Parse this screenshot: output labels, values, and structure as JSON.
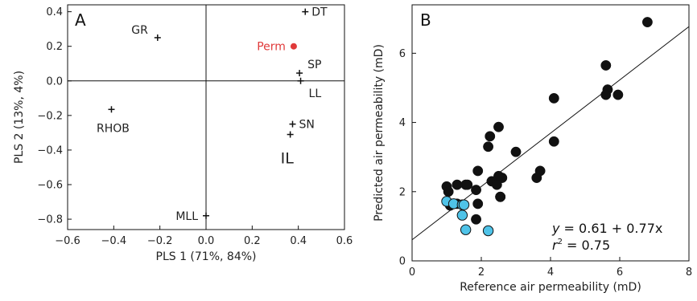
{
  "chart_data": [
    {
      "type": "scatter",
      "panel_label": "A",
      "xlabel": "PLS 1 (71%, 84%)",
      "ylabel": "PLS 2 (13%, 4%)",
      "xlim": [
        -0.6,
        0.6
      ],
      "ylim": [
        -0.86,
        0.44
      ],
      "xticks": [
        -0.6,
        -0.4,
        -0.2,
        0,
        0.2,
        0.4,
        0.6
      ],
      "xtick_labels": [
        "−0.6",
        "−0.4",
        "−0.2",
        "0.0",
        "0.2",
        "0.4",
        "0.6"
      ],
      "yticks": [
        0.4,
        0.2,
        0.0,
        -0.2,
        -0.4,
        -0.6,
        -0.8
      ],
      "ytick_labels": [
        "0.4",
        "0.2",
        "0.0",
        "−0.2",
        "−0.4",
        "−0.6",
        "−0.8"
      ],
      "zero_lines": true,
      "points": [
        {
          "label": "DT",
          "x": 0.43,
          "y": 0.4,
          "marker": "plus",
          "color": "#111111",
          "label_pos": "right"
        },
        {
          "label": "GR",
          "x": -0.21,
          "y": 0.25,
          "marker": "plus",
          "color": "#111111",
          "label_pos": "upper-left"
        },
        {
          "label": "Perm",
          "x": 0.38,
          "y": 0.2,
          "marker": "dot",
          "color": "#e03a3a",
          "label_pos": "left"
        },
        {
          "label": "SP",
          "x": 0.405,
          "y": 0.045,
          "marker": "plus",
          "color": "#111111",
          "label_pos": "upper-right"
        },
        {
          "label": "LL",
          "x": 0.41,
          "y": 0.0,
          "marker": "plus",
          "color": "#111111",
          "label_pos": "lower-right"
        },
        {
          "label": "RHOB",
          "x": -0.41,
          "y": -0.165,
          "marker": "plus",
          "color": "#111111",
          "label_pos": "below"
        },
        {
          "label": "SN",
          "x": 0.375,
          "y": -0.25,
          "marker": "plus",
          "color": "#111111",
          "label_pos": "right"
        },
        {
          "label": "IL",
          "x": 0.365,
          "y": -0.31,
          "marker": "plus",
          "color": "#111111",
          "label_pos": "below-large"
        },
        {
          "label": "MLL",
          "x": 0.0,
          "y": -0.78,
          "marker": "plus",
          "color": "#111111",
          "label_pos": "left"
        }
      ]
    },
    {
      "type": "scatter",
      "panel_label": "B",
      "xlabel": "Reference air permeability (mD)",
      "ylabel": "Predicted air permeability (mD)",
      "xlim": [
        0,
        8
      ],
      "ylim": [
        0,
        7.4
      ],
      "xticks": [
        0,
        2,
        4,
        6,
        8
      ],
      "yticks": [
        0,
        2,
        4,
        6
      ],
      "fit_line": {
        "intercept": 0.61,
        "slope": 0.77
      },
      "annotation": {
        "eq_italic": "y",
        "eq_rest": " = 0.61 + 0.77x",
        "r2_italic": "r",
        "r2_sup": "2",
        "r2_rest": " = 0.75"
      },
      "series": [
        {
          "marker_color": "#111111",
          "x": [
            6.8,
            5.6,
            5.65,
            5.6,
            5.95,
            4.1,
            4.1,
            2.5,
            2.25,
            2.2,
            3.0,
            2.6,
            2.5,
            2.3,
            2.45,
            2.55,
            3.7,
            3.6,
            1.9,
            1.85,
            1.0,
            1.05,
            1.3,
            1.55,
            1.6,
            1.9,
            2.55,
            1.3,
            1.1,
            1.85
          ],
          "y": [
            6.9,
            5.65,
            4.95,
            4.8,
            4.8,
            4.7,
            3.45,
            3.87,
            3.6,
            3.3,
            3.15,
            2.4,
            2.45,
            2.3,
            2.2,
            1.85,
            2.6,
            2.4,
            2.6,
            2.05,
            2.15,
            2.0,
            2.2,
            2.2,
            2.2,
            1.65,
            1.85,
            1.65,
            1.6,
            1.2
          ]
        },
        {
          "marker_color": "#4fc3e8",
          "x": [
            1.0,
            1.2,
            1.45,
            1.5,
            1.45,
            1.55,
            2.2
          ],
          "y": [
            1.72,
            1.65,
            1.62,
            1.62,
            1.32,
            0.9,
            0.87
          ]
        }
      ]
    }
  ]
}
